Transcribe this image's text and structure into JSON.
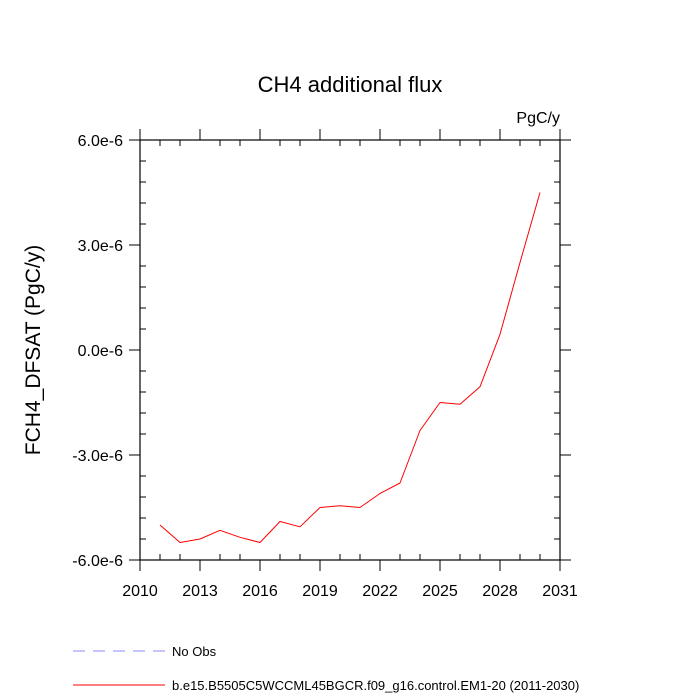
{
  "chart_data": {
    "type": "line",
    "title": "CH4 additional flux",
    "units_label": "PgC/y",
    "ylabel": "FCH4_DFSAT  (PgC/y)",
    "xlabel": "",
    "xlim": [
      2010,
      2031
    ],
    "ylim": [
      -6e-06,
      6e-06
    ],
    "x_ticks": [
      2010,
      2013,
      2016,
      2019,
      2022,
      2025,
      2028,
      2031
    ],
    "x_tick_labels": [
      "2010",
      "2013",
      "2016",
      "2019",
      "2022",
      "2025",
      "2028",
      "2031"
    ],
    "y_ticks": [
      -6e-06,
      -3e-06,
      0.0,
      3e-06,
      6e-06
    ],
    "y_tick_labels": [
      "-6.0e-6",
      "-3.0e-6",
      "0.0e-6",
      "3.0e-6",
      "6.0e-6"
    ],
    "grid": false,
    "legend_placement": "bottom-left",
    "series": [
      {
        "name": "b.e15.B5505C5WCCML45BGCR.f09_g16.control.EM1-20 (2011-2030)",
        "color": "#ff0000",
        "dash": "solid",
        "x": [
          2011,
          2012,
          2013,
          2014,
          2015,
          2016,
          2017,
          2018,
          2019,
          2020,
          2021,
          2022,
          2023,
          2024,
          2025,
          2026,
          2027,
          2028,
          2029,
          2030
        ],
        "y": [
          -5e-06,
          -5.5e-06,
          -5.4e-06,
          -5.15e-06,
          -5.35e-06,
          -5.5e-06,
          -4.9e-06,
          -5.05e-06,
          -4.5e-06,
          -4.45e-06,
          -4.5e-06,
          -4.1e-06,
          -3.8e-06,
          -2.3e-06,
          -1.5e-06,
          -1.55e-06,
          -1.05e-06,
          4.5e-07,
          2.5e-06,
          4.5e-06
        ]
      }
    ],
    "legend": [
      {
        "label": "No Obs",
        "color": "#8888ff",
        "dash": "dashed"
      },
      {
        "label": "b.e15.B5505C5WCCML45BGCR.f09_g16.control.EM1-20 (2011-2030)",
        "color": "#ff0000",
        "dash": "solid"
      }
    ]
  }
}
